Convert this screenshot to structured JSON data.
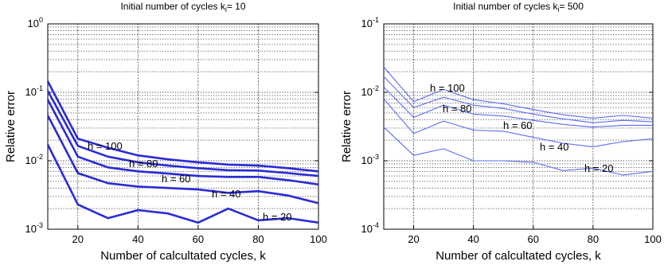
{
  "chart_data": [
    {
      "type": "line",
      "title": "Initial number of cycles k",
      "title_subscript": "i",
      "title_value": "= 10",
      "xlabel": "Number of calcultated cycles, k",
      "ylabel": "Relative error",
      "xlim": [
        10,
        100
      ],
      "ylim": [
        0.001,
        1
      ],
      "yscale": "log",
      "grid": true,
      "line_color": "#2b2bd6",
      "x_ticks": [
        "20",
        "40",
        "60",
        "80",
        "100"
      ],
      "y_ticks": [
        {
          "base": "10",
          "exp": "-3"
        },
        {
          "base": "10",
          "exp": "-2"
        },
        {
          "base": "10",
          "exp": "-1"
        },
        {
          "base": "10",
          "exp": "0"
        }
      ],
      "x": [
        10,
        20,
        30,
        40,
        50,
        60,
        70,
        80,
        90,
        100
      ],
      "series": [
        {
          "name": "h = 100",
          "values": [
            0.145,
            0.021,
            0.0155,
            0.012,
            0.0105,
            0.0095,
            0.0088,
            0.0085,
            0.0078,
            0.007
          ]
        },
        {
          "name": "h = 80",
          "values": [
            0.105,
            0.0165,
            0.0115,
            0.0095,
            0.0085,
            0.0078,
            0.0073,
            0.0072,
            0.0066,
            0.006
          ]
        },
        {
          "name": "h = 60",
          "values": [
            0.078,
            0.0115,
            0.008,
            0.007,
            0.0065,
            0.006,
            0.0058,
            0.0058,
            0.0052,
            0.0045
          ]
        },
        {
          "name": "h = 40",
          "values": [
            0.046,
            0.0066,
            0.0047,
            0.0042,
            0.004,
            0.0038,
            0.0034,
            0.0036,
            0.0031,
            0.0024
          ]
        },
        {
          "name": "h = 20",
          "values": [
            0.0172,
            0.0023,
            0.00145,
            0.0019,
            0.0017,
            0.00125,
            0.002,
            0.00135,
            0.00145,
            0.00125
          ]
        }
      ]
    },
    {
      "type": "line",
      "title": "Initial number of cycles k",
      "title_subscript": "i",
      "title_value": "= 500",
      "xlabel": "Number of calcultated cycles, k",
      "ylabel": "Relative error",
      "xlim": [
        10,
        100
      ],
      "ylim": [
        0.0001,
        0.1
      ],
      "yscale": "log",
      "grid": true,
      "line_color": "#5a6cf0",
      "x_ticks": [
        "20",
        "40",
        "60",
        "80",
        "100"
      ],
      "y_ticks": [
        {
          "base": "10",
          "exp": "-4"
        },
        {
          "base": "10",
          "exp": "-3"
        },
        {
          "base": "10",
          "exp": "-2"
        },
        {
          "base": "10",
          "exp": "-1"
        }
      ],
      "x": [
        10,
        20,
        30,
        40,
        50,
        60,
        70,
        80,
        90,
        100
      ],
      "series": [
        {
          "name": "h = 100",
          "values": [
            0.0235,
            0.0073,
            0.011,
            0.0078,
            0.0068,
            0.0056,
            0.0047,
            0.0042,
            0.0046,
            0.0042
          ]
        },
        {
          "name": "h = 80",
          "values": [
            0.017,
            0.006,
            0.0085,
            0.0065,
            0.0058,
            0.0048,
            0.0041,
            0.0036,
            0.0039,
            0.0037
          ]
        },
        {
          "name": "h = 60",
          "values": [
            0.012,
            0.0043,
            0.0065,
            0.0048,
            0.0045,
            0.0039,
            0.0034,
            0.0031,
            0.0033,
            0.0033
          ]
        },
        {
          "name": "h = 40",
          "values": [
            0.008,
            0.0025,
            0.0038,
            0.0028,
            0.0027,
            0.0022,
            0.0018,
            0.0016,
            0.0019,
            0.0021
          ]
        },
        {
          "name": "h = 20",
          "values": [
            0.0031,
            0.0012,
            0.0015,
            0.001,
            0.001,
            0.00095,
            0.00072,
            0.00078,
            0.00062,
            0.0007
          ]
        }
      ]
    }
  ]
}
